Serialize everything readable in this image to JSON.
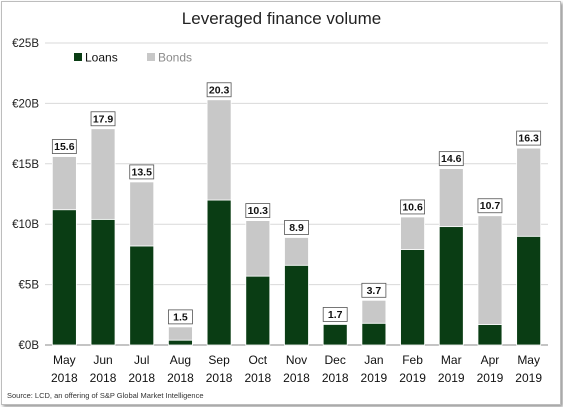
{
  "chart_data": {
    "type": "bar",
    "stacked": true,
    "title": "Leveraged finance volume",
    "categories": [
      [
        "May",
        "2018"
      ],
      [
        "Jun",
        "2018"
      ],
      [
        "Jul",
        "2018"
      ],
      [
        "Aug",
        "2018"
      ],
      [
        "Sep",
        "2018"
      ],
      [
        "Oct",
        "2018"
      ],
      [
        "Nov",
        "2018"
      ],
      [
        "Dec",
        "2018"
      ],
      [
        "Jan",
        "2019"
      ],
      [
        "Feb",
        "2019"
      ],
      [
        "Mar",
        "2019"
      ],
      [
        "Apr",
        "2019"
      ],
      [
        "May",
        "2019"
      ]
    ],
    "series": [
      {
        "name": "Loans",
        "color": "#0a3d14",
        "values": [
          11.2,
          10.4,
          8.2,
          0.4,
          12.0,
          5.7,
          6.6,
          1.7,
          1.8,
          7.9,
          9.8,
          1.7,
          9.0
        ]
      },
      {
        "name": "Bonds",
        "color": "#c8c8c8",
        "values": [
          4.4,
          7.5,
          5.3,
          1.1,
          8.3,
          4.6,
          2.3,
          0.0,
          1.9,
          2.7,
          4.8,
          9.0,
          7.3
        ]
      }
    ],
    "totals": [
      15.6,
      17.9,
      13.5,
      1.5,
      20.3,
      10.3,
      8.9,
      1.7,
      3.7,
      10.6,
      14.6,
      10.7,
      16.3
    ],
    "total_labels": [
      "15.6",
      "17.9",
      "13.5",
      "1.5",
      "20.3",
      "10.3",
      "8.9",
      "1.7",
      "3.7",
      "10.6",
      "14.6",
      "10.7",
      "16.3"
    ],
    "yticks": [
      0,
      5,
      10,
      15,
      20,
      25
    ],
    "ytick_labels": [
      "€0B",
      "€5B",
      "€10B",
      "€15B",
      "€20B",
      "€25B"
    ],
    "ylim": [
      0,
      25
    ],
    "grid": true,
    "legend": "top-left",
    "source": "Source: LCD, an offering of S&P Global Market Intelligence"
  }
}
